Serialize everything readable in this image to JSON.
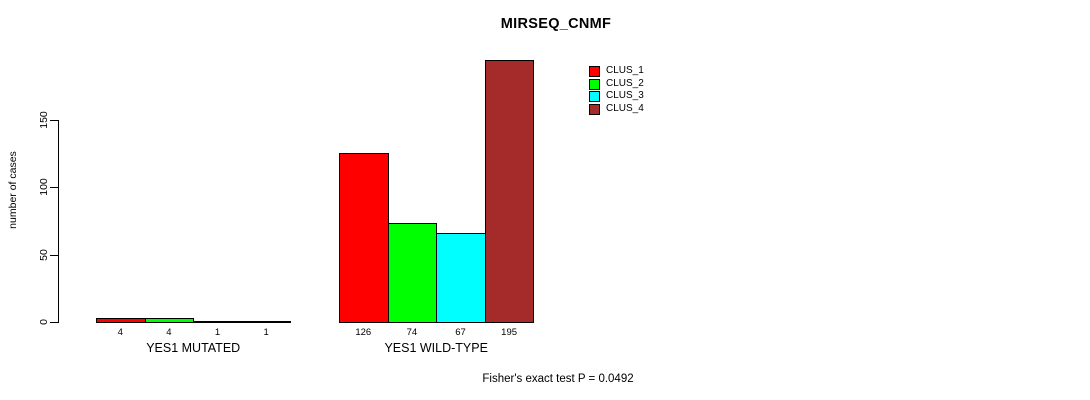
{
  "chart_data": {
    "type": "bar",
    "title": "MIRSEQ_CNMF",
    "ylabel": "number of cases",
    "ylim": [
      0,
      150
    ],
    "yticks": [
      0,
      50,
      100,
      150
    ],
    "grid": false,
    "legend_position": "top-right",
    "categories": [
      "YES1 MUTATED",
      "YES1 WILD-TYPE"
    ],
    "series": [
      {
        "name": "CLUS_1",
        "color": "#ff0000",
        "values": [
          4,
          126
        ]
      },
      {
        "name": "CLUS_2",
        "color": "#00ff00",
        "values": [
          4,
          74
        ]
      },
      {
        "name": "CLUS_3",
        "color": "#00ffff",
        "values": [
          1,
          67
        ]
      },
      {
        "name": "CLUS_4",
        "color": "#a52a2a",
        "values": [
          1,
          195
        ]
      }
    ],
    "bar_value_labels": true,
    "annotation": "Fisher's exact test P = 0.0492"
  }
}
